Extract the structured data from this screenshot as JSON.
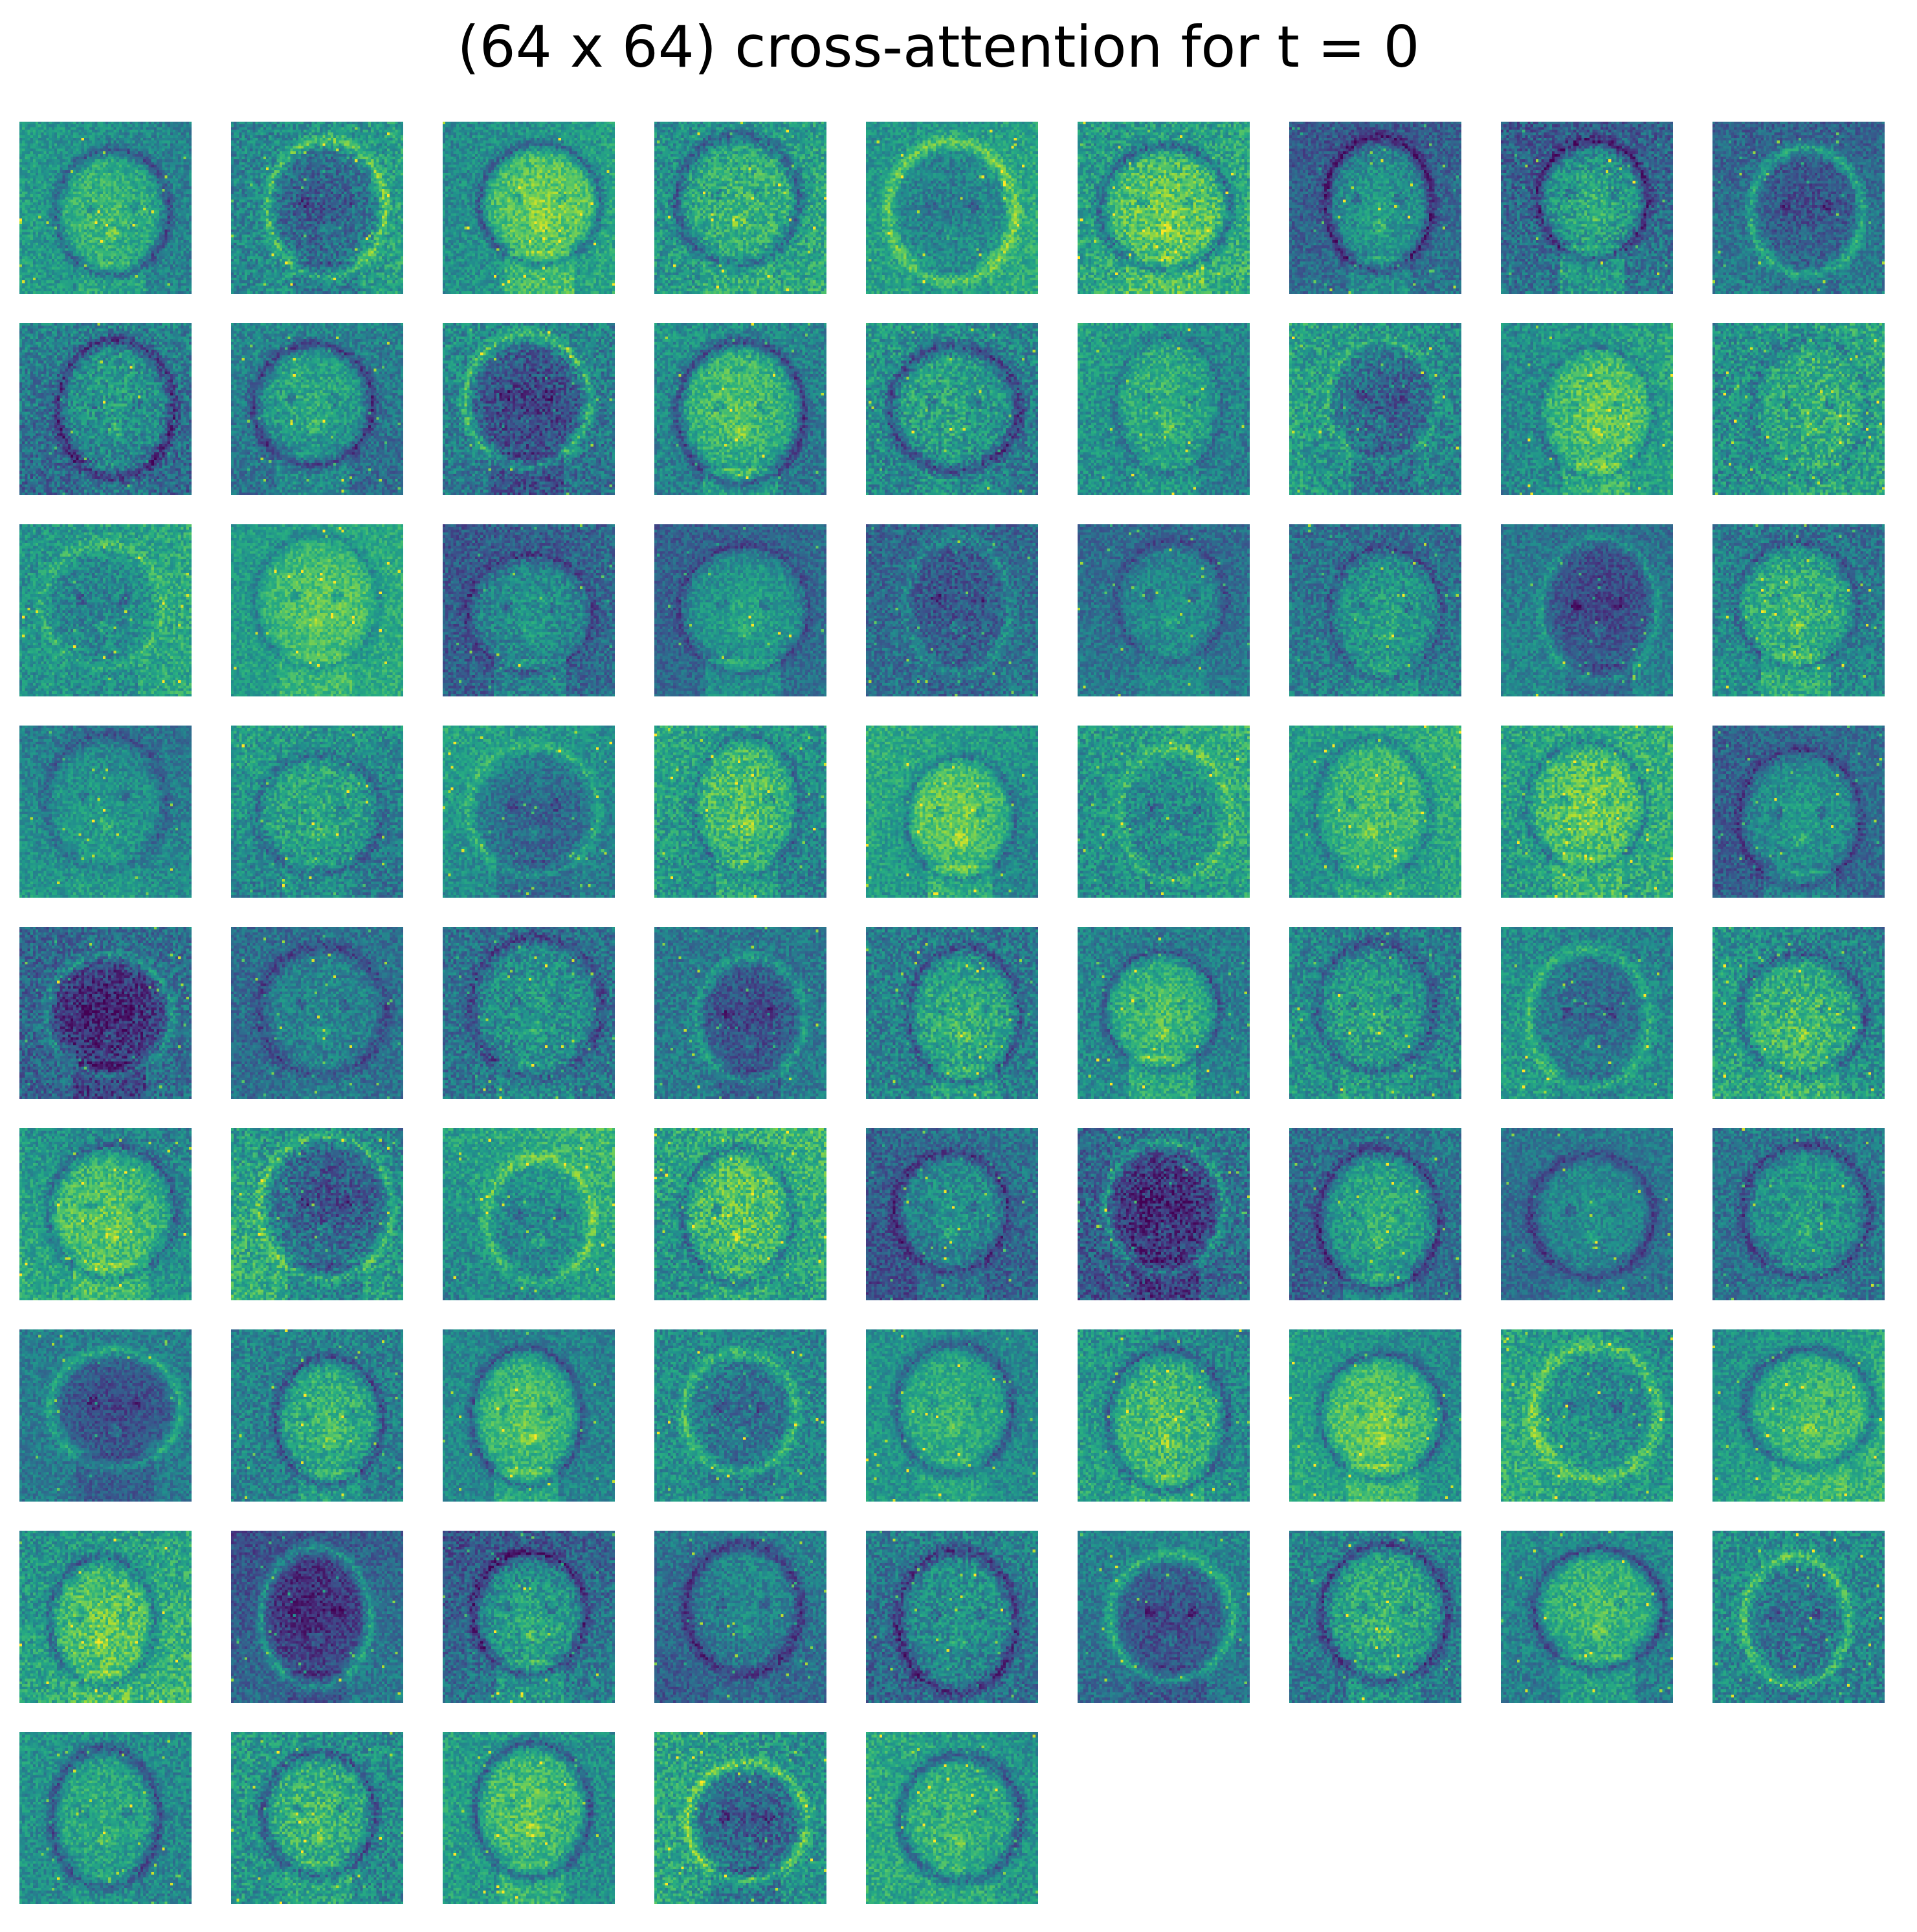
{
  "figure": {
    "title": "(64 x 64) cross-attention for t = 0",
    "colormap": "viridis",
    "panels": {
      "count": 77,
      "columns": 9,
      "rows": 9,
      "resolution": "64 x 64",
      "subject": "attention map of a dog face",
      "axes": "off"
    }
  }
}
